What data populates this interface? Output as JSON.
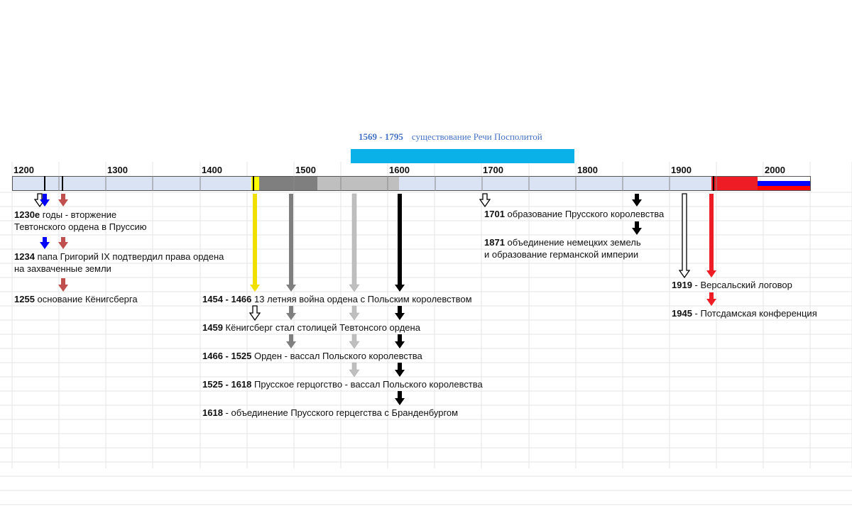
{
  "scale": {
    "years": [
      "1200",
      "1300",
      "1400",
      "1500",
      "1600",
      "1700",
      "1800",
      "1900",
      "2000"
    ]
  },
  "banner": {
    "years": "1569 - 1795",
    "text": "существование Речи Посполитой",
    "color": "#0ab0e8"
  },
  "timeline_colors": {
    "base": "#dae3f3",
    "yellow": "#ffff00",
    "dark_gray": "#7f7f7f",
    "mid_gray": "#bfbfbf",
    "black": "#000000",
    "red": "#ee1c25",
    "flag_white": "#ffffff",
    "flag_blue": "#0000ff",
    "flag_red": "#ff0000"
  },
  "events": [
    {
      "year": "1230е",
      "line1": " годы - вторжение",
      "line2": "Тевтонского ордена в Пруссию"
    },
    {
      "year": "1234",
      "line1": " папа Григорий IX подтвердил права ордена",
      "line2": "на захваченные земли"
    },
    {
      "year": "1255",
      "line1": " основание Кёнигсберга",
      "line2": ""
    },
    {
      "year": "1454 - 1466",
      "line1": " 13 летняя война ордена с Польским королевством",
      "line2": ""
    },
    {
      "year": "1459",
      "line1": " Кёнигсберг стал столицей Тевтонсого ордена",
      "line2": ""
    },
    {
      "year": "1466 - 1525",
      "line1": " Орден - вассал Польского королевства",
      "line2": ""
    },
    {
      "year": "1525 - 1618",
      "line1": " Прусское герцогство - вассал Польского королевства",
      "line2": ""
    },
    {
      "year": "1618",
      "line1": " - объединение Прусского герцегства с Бранденбургом",
      "line2": ""
    },
    {
      "year": "1701",
      "line1": " образование Прусского королевства",
      "line2": ""
    },
    {
      "year": "1871",
      "line1": " объединение немецких земель",
      "line2": "и образование германской империи"
    },
    {
      "year": "1919",
      "line1": " - Версальский логовор",
      "line2": ""
    },
    {
      "year": "1945",
      "line1": " - Потсдамская конференция",
      "line2": ""
    }
  ]
}
